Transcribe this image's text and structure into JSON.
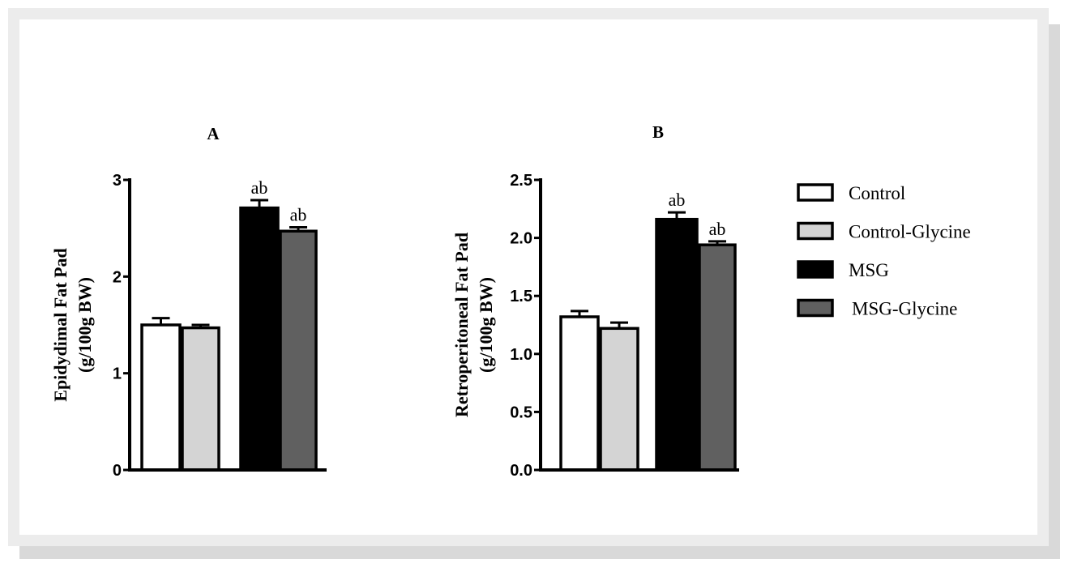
{
  "legend": {
    "items": [
      {
        "name": "Control",
        "color": "#ffffff"
      },
      {
        "name": "Control-Glycine",
        "color": "#d4d4d4"
      },
      {
        "name": "MSG",
        "color": "#000000"
      },
      {
        "name": "MSG-Glycine",
        "color": "#606060"
      }
    ],
    "placement": "right"
  },
  "chart_data": [
    {
      "type": "bar",
      "title": "A",
      "ylabel_line1": "Epidydimal Fat Pad",
      "ylabel_line2": "(g/100g BW)",
      "categories": [
        "Control",
        "Control-Glycine",
        "MSG",
        "MSG-Glycine"
      ],
      "values": [
        1.5,
        1.47,
        2.71,
        2.47
      ],
      "errors": [
        0.07,
        0.03,
        0.08,
        0.04
      ],
      "annotations": [
        "",
        "",
        "ab",
        "ab"
      ],
      "ylim": [
        0,
        3
      ],
      "yticks": [
        "0",
        "1",
        "2",
        "3"
      ],
      "grid": false
    },
    {
      "type": "bar",
      "title": "B",
      "ylabel_line1": "Retroperitoneal Fat Pad",
      "ylabel_line2": "(g/100g BW)",
      "categories": [
        "Control",
        "Control-Glycine",
        "MSG",
        "MSG-Glycine"
      ],
      "values": [
        1.32,
        1.22,
        2.16,
        1.94
      ],
      "errors": [
        0.05,
        0.05,
        0.06,
        0.03
      ],
      "annotations": [
        "",
        "",
        "ab",
        "ab"
      ],
      "ylim": [
        0,
        2.5
      ],
      "yticks": [
        "0.0",
        "0.5",
        "1.0",
        "1.5",
        "2.0",
        "2.5"
      ],
      "grid": false
    }
  ]
}
